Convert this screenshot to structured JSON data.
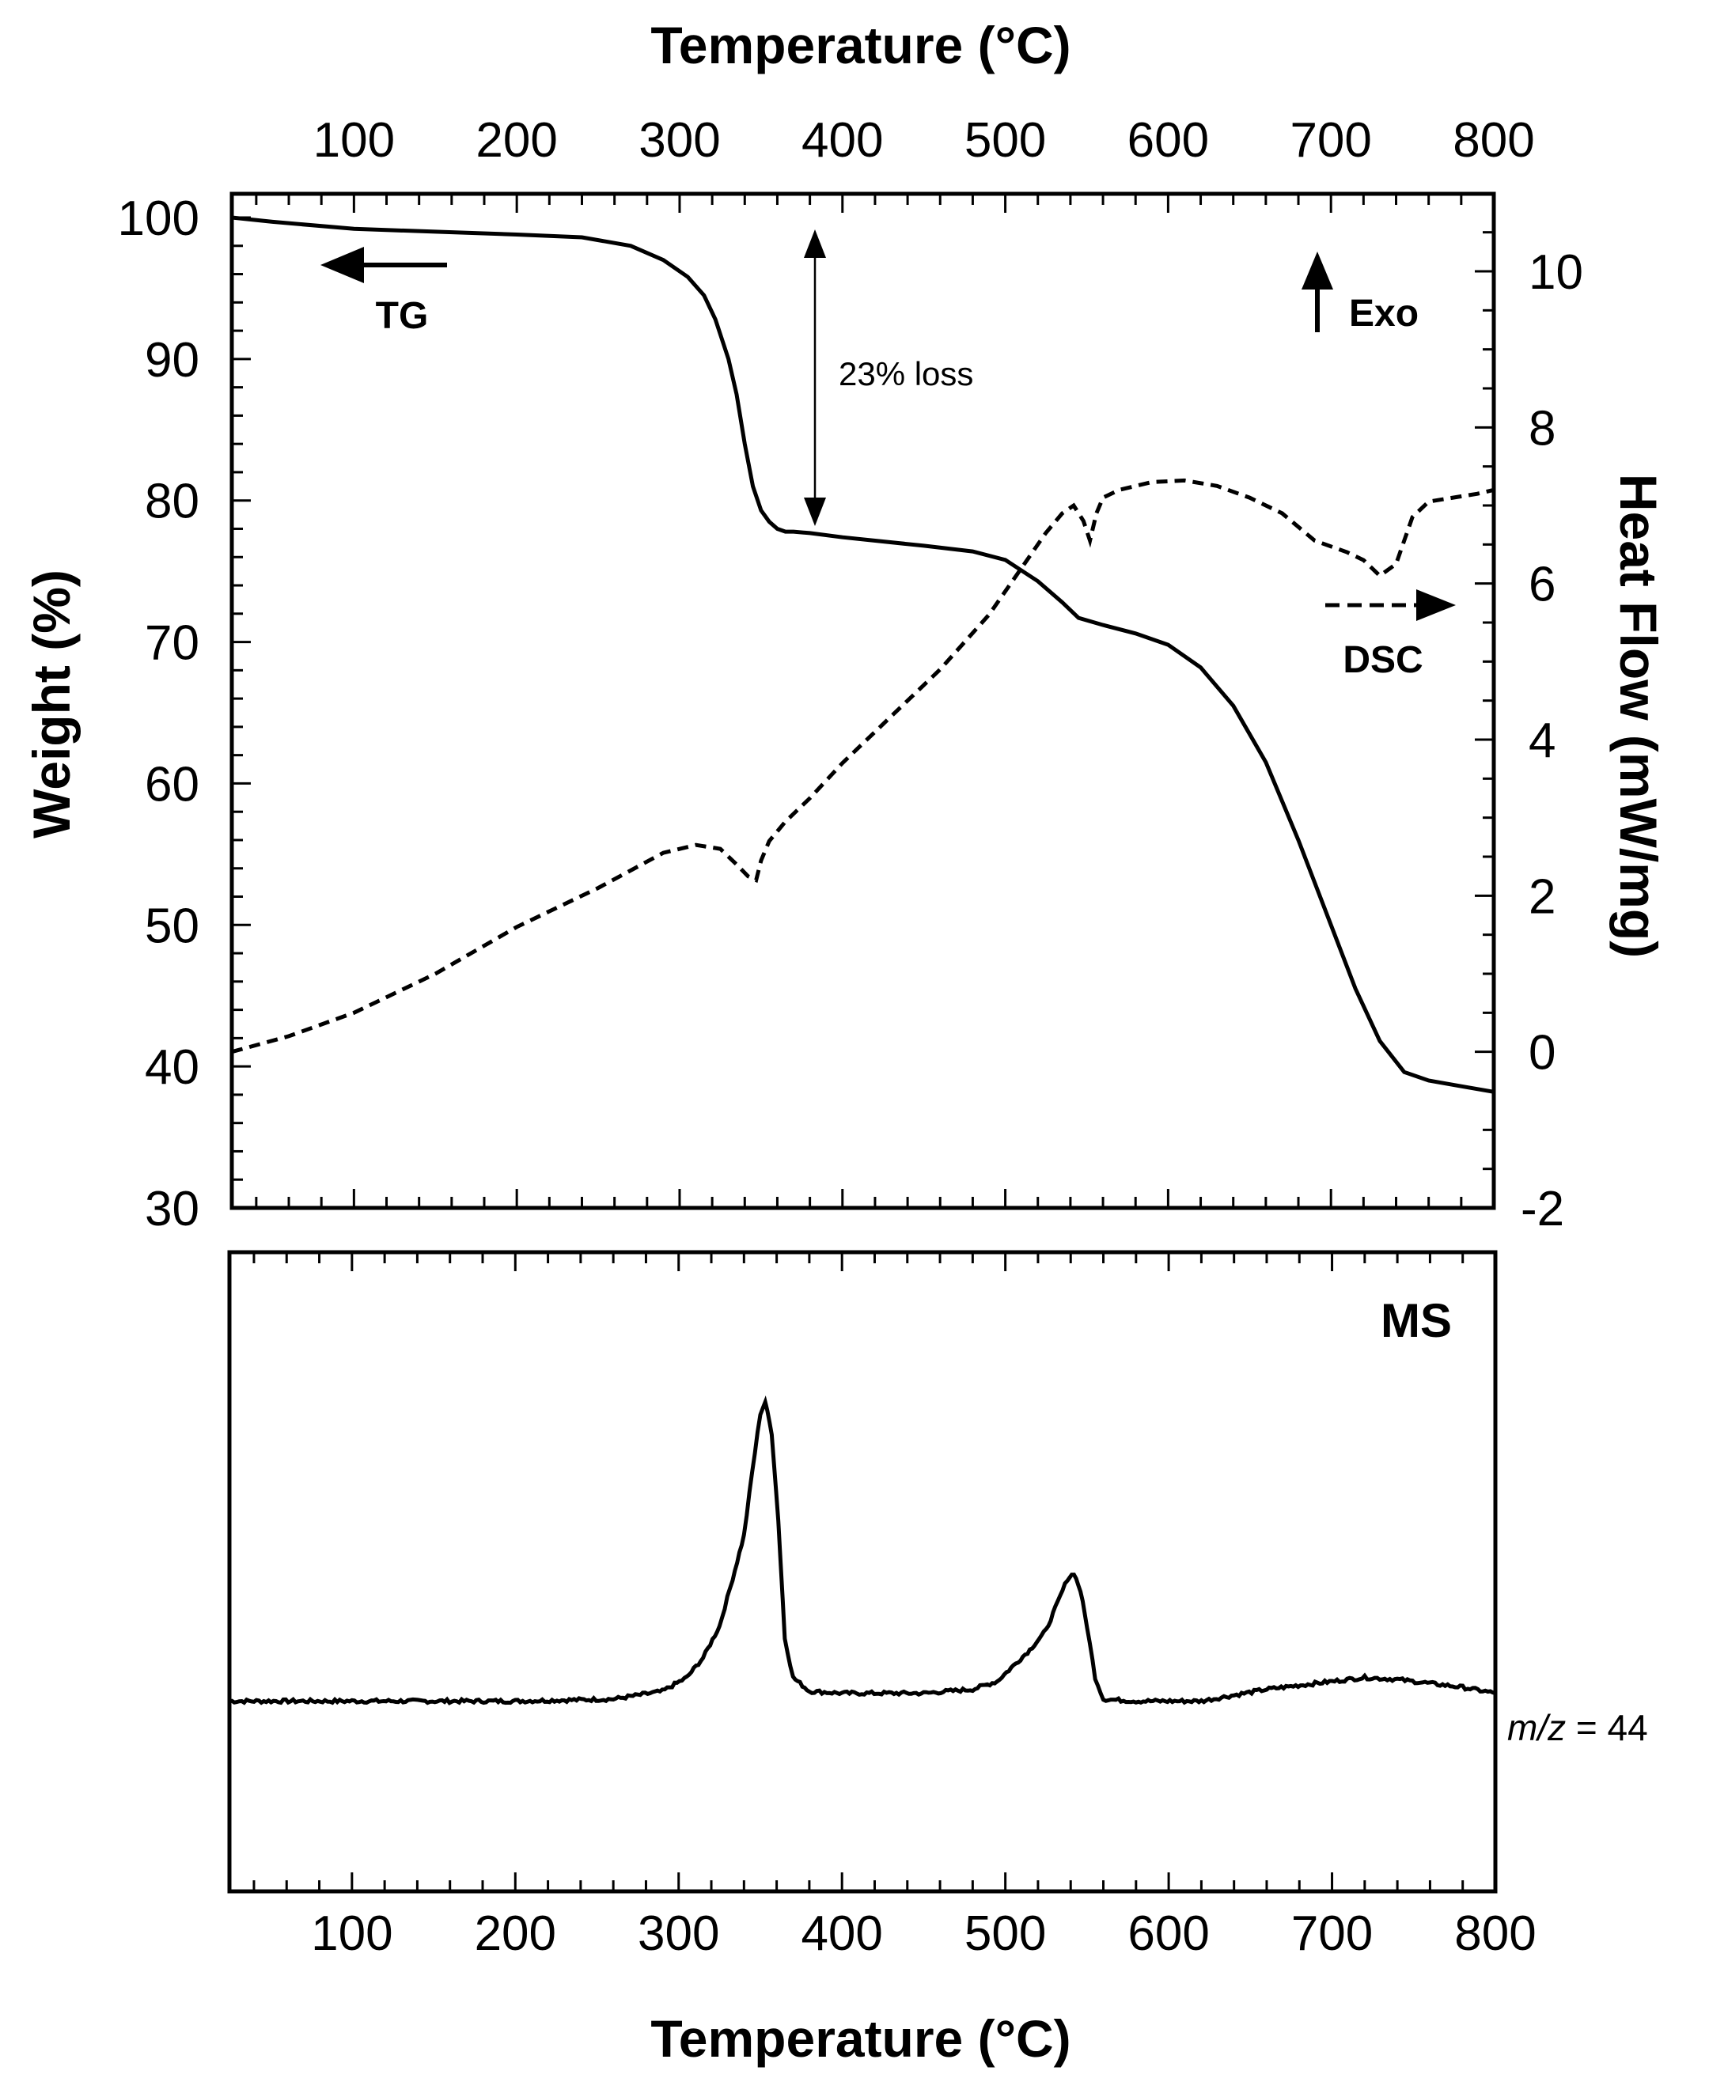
{
  "chart_data": [
    {
      "type": "line",
      "panel": "TG-DSC",
      "xlabel_top": "Temperature (°C)",
      "ylabel_left": "Weight (%)",
      "ylabel_right": "Heat Flow (mW/mg)",
      "xlim": [
        25,
        800
      ],
      "ylim_left": [
        30,
        100
      ],
      "ylim_right": [
        -2,
        11
      ],
      "x_ticks": [
        100,
        200,
        300,
        400,
        500,
        600,
        700,
        800
      ],
      "y_left_ticks": [
        30,
        40,
        50,
        60,
        70,
        80,
        90,
        100
      ],
      "y_right_ticks": [
        -2,
        0,
        2,
        4,
        6,
        8,
        10
      ],
      "series": [
        {
          "name": "TG",
          "axis": "left",
          "style": "solid",
          "x": [
            25,
            50,
            100,
            150,
            200,
            240,
            270,
            290,
            305,
            315,
            322,
            330,
            335,
            340,
            345,
            350,
            355,
            360,
            365,
            370,
            380,
            400,
            450,
            480,
            500,
            520,
            535,
            545,
            560,
            580,
            600,
            620,
            640,
            660,
            680,
            700,
            715,
            730,
            745,
            760,
            780,
            800
          ],
          "y": [
            100,
            99.7,
            99.2,
            99.0,
            98.8,
            98.6,
            98.0,
            97.0,
            95.8,
            94.5,
            92.8,
            90.0,
            87.5,
            84.0,
            81.0,
            79.3,
            78.5,
            78.0,
            77.8,
            77.8,
            77.7,
            77.4,
            76.8,
            76.4,
            75.8,
            74.3,
            72.8,
            71.7,
            71.2,
            70.6,
            69.8,
            68.2,
            65.5,
            61.5,
            56.0,
            50.0,
            45.5,
            41.8,
            39.6,
            39.0,
            38.6,
            38.2
          ]
        },
        {
          "name": "DSC",
          "axis": "right",
          "style": "dashed",
          "x": [
            25,
            60,
            100,
            150,
            200,
            250,
            290,
            310,
            325,
            335,
            342,
            347,
            350,
            355,
            365,
            380,
            400,
            430,
            460,
            490,
            510,
            525,
            535,
            542,
            548,
            552,
            556,
            560,
            570,
            590,
            610,
            630,
            650,
            670,
            690,
            710,
            720,
            730,
            740,
            750,
            760,
            775,
            790,
            800
          ],
          "y": [
            0.0,
            0.2,
            0.5,
            1.0,
            1.6,
            2.1,
            2.55,
            2.65,
            2.6,
            2.4,
            2.25,
            2.2,
            2.45,
            2.7,
            2.95,
            3.25,
            3.7,
            4.3,
            4.9,
            5.6,
            6.2,
            6.65,
            6.9,
            7.0,
            6.8,
            6.55,
            6.9,
            7.1,
            7.2,
            7.3,
            7.32,
            7.25,
            7.1,
            6.9,
            6.55,
            6.4,
            6.3,
            6.1,
            6.25,
            6.85,
            7.05,
            7.1,
            7.15,
            7.2
          ]
        }
      ],
      "annotations": [
        {
          "text": "23% loss",
          "x": 380,
          "y_from": 100,
          "y_to": 77.8
        },
        {
          "text": "TG",
          "arrow": "left"
        },
        {
          "text": "Exo",
          "arrow": "up"
        },
        {
          "text": "DSC",
          "arrow": "right"
        }
      ]
    },
    {
      "type": "line",
      "panel": "MS",
      "title": "MS",
      "xlabel": "Temperature (°C)",
      "xlim": [
        25,
        800
      ],
      "ylim": [
        0,
        100
      ],
      "x_ticks": [
        100,
        200,
        300,
        400,
        500,
        600,
        700,
        800
      ],
      "series": [
        {
          "name": "m/z = 44",
          "style": "solid",
          "x": [
            25,
            100,
            200,
            260,
            290,
            305,
            315,
            325,
            333,
            340,
            345,
            350,
            353,
            357,
            361,
            365,
            370,
            380,
            400,
            450,
            480,
            495,
            505,
            515,
            525,
            532,
            538,
            542,
            546,
            550,
            555,
            560,
            580,
            620,
            640,
            660,
            700,
            720,
            740,
            760,
            780,
            800
          ],
          "y": [
            24,
            24,
            24,
            24.5,
            26.5,
            30,
            35,
            43,
            55,
            66,
            82,
            97,
            100,
            92,
            70,
            40,
            30,
            26.5,
            26,
            26,
            27,
            29,
            33,
            37,
            42,
            49,
            55,
            56.5,
            52,
            43,
            30,
            24.5,
            24,
            24,
            25.5,
            27,
            29,
            30,
            29.5,
            28.5,
            27.5,
            26
          ]
        }
      ],
      "label": {
        "lead": "m/z",
        "rest": " = 44"
      }
    }
  ]
}
